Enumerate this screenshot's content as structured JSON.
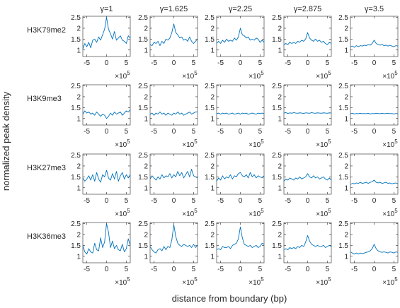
{
  "figure": {
    "ylabel": "normalized peak density",
    "xlabel": "distance from boundary (bp)",
    "x_exponent_label": "×10",
    "x_exponent_power": "5"
  },
  "chart_data": {
    "type": "line",
    "layout": "small-multiples grid, 4 rows x 5 columns",
    "columns": [
      "γ=1",
      "γ=1.625",
      "γ=2.25",
      "γ=2.875",
      "γ=3.5"
    ],
    "rows": [
      "H3K79me2",
      "H3K9me3",
      "H3K27me3",
      "H3K36me3"
    ],
    "xlim": [
      -6,
      6
    ],
    "x_multiplier": 100000,
    "xticks": [
      -5,
      0,
      5
    ],
    "ylim": [
      0.7,
      2.55
    ],
    "yticks": [
      1,
      1.5,
      2,
      2.5
    ],
    "grid": false,
    "line_color": "#0072BD",
    "x": [
      -6,
      -5.5,
      -5,
      -4.5,
      -4,
      -3.5,
      -3,
      -2.5,
      -2,
      -1.5,
      -1,
      -0.5,
      0,
      0.5,
      1,
      1.5,
      2,
      2.5,
      3,
      3.5,
      4,
      4.5,
      5,
      5.5,
      6
    ],
    "panels": [
      [
        {
          "values": [
            1.05,
            1.3,
            1.15,
            1.35,
            1.1,
            1.45,
            1.5,
            1.35,
            1.6,
            1.45,
            1.7,
            1.95,
            2.5,
            1.95,
            1.75,
            1.5,
            1.85,
            1.45,
            1.55,
            1.65,
            1.45,
            1.4,
            1.3,
            1.65,
            1.55
          ]
        },
        {
          "values": [
            1.25,
            1.2,
            1.35,
            1.3,
            1.4,
            1.2,
            1.4,
            1.3,
            1.5,
            1.45,
            1.55,
            1.8,
            2.2,
            1.8,
            1.7,
            1.55,
            1.6,
            1.45,
            1.5,
            1.4,
            1.6,
            1.4,
            1.3,
            1.4,
            1.5
          ]
        },
        {
          "values": [
            1.3,
            1.4,
            1.3,
            1.45,
            1.35,
            1.5,
            1.4,
            1.45,
            1.4,
            1.55,
            1.45,
            1.6,
            2.0,
            1.7,
            1.65,
            1.55,
            1.6,
            1.45,
            1.5,
            1.45,
            1.55,
            1.5,
            1.35,
            1.45,
            1.35
          ]
        },
        {
          "values": [
            1.25,
            1.3,
            1.25,
            1.35,
            1.3,
            1.35,
            1.3,
            1.4,
            1.35,
            1.45,
            1.4,
            1.5,
            1.8,
            1.55,
            1.45,
            1.4,
            1.5,
            1.4,
            1.45,
            1.35,
            1.4,
            1.3,
            1.25,
            1.35,
            1.3
          ]
        },
        {
          "values": [
            1.15,
            1.18,
            1.12,
            1.2,
            1.15,
            1.2,
            1.18,
            1.22,
            1.2,
            1.25,
            1.22,
            1.3,
            1.45,
            1.3,
            1.25,
            1.22,
            1.25,
            1.2,
            1.22,
            1.18,
            1.22,
            1.18,
            1.15,
            1.2,
            1.18
          ]
        }
      ],
      [
        {
          "values": [
            1.2,
            1.35,
            1.25,
            1.3,
            1.2,
            1.25,
            1.15,
            1.3,
            1.2,
            1.1,
            1.2,
            1.15,
            1.0,
            1.1,
            1.25,
            1.15,
            1.3,
            1.2,
            1.25,
            1.3,
            1.15,
            1.25,
            1.35,
            1.3,
            1.4
          ]
        },
        {
          "values": [
            1.2,
            1.25,
            1.15,
            1.25,
            1.2,
            1.3,
            1.2,
            1.25,
            1.15,
            1.25,
            1.2,
            1.15,
            1.25,
            1.2,
            1.3,
            1.2,
            1.25,
            1.15,
            1.2,
            1.25,
            1.3,
            1.2,
            1.25,
            1.3,
            1.3
          ]
        },
        {
          "values": [
            1.22,
            1.25,
            1.2,
            1.25,
            1.22,
            1.25,
            1.2,
            1.22,
            1.25,
            1.2,
            1.22,
            1.25,
            1.2,
            1.25,
            1.22,
            1.25,
            1.2,
            1.22,
            1.25,
            1.22,
            1.2,
            1.25,
            1.22,
            1.25,
            1.22
          ]
        },
        {
          "values": [
            1.25,
            1.27,
            1.23,
            1.26,
            1.24,
            1.27,
            1.25,
            1.24,
            1.26,
            1.25,
            1.23,
            1.26,
            1.25,
            1.24,
            1.27,
            1.25,
            1.24,
            1.26,
            1.25,
            1.24,
            1.26,
            1.25,
            1.24,
            1.26,
            1.25
          ]
        },
        {
          "values": [
            1.22,
            1.24,
            1.21,
            1.23,
            1.22,
            1.24,
            1.22,
            1.23,
            1.22,
            1.24,
            1.21,
            1.23,
            1.22,
            1.24,
            1.23,
            1.22,
            1.24,
            1.22,
            1.23,
            1.24,
            1.22,
            1.23,
            1.21,
            1.23,
            1.22
          ]
        }
      ],
      [
        {
          "values": [
            1.45,
            1.3,
            1.4,
            1.55,
            1.35,
            1.6,
            1.3,
            1.7,
            1.4,
            1.25,
            1.6,
            1.5,
            1.8,
            1.45,
            1.35,
            1.65,
            1.4,
            1.75,
            1.3,
            1.55,
            1.7,
            1.4,
            1.6,
            1.45,
            1.6
          ]
        },
        {
          "values": [
            1.4,
            1.55,
            1.45,
            1.35,
            1.5,
            1.4,
            1.6,
            1.45,
            1.55,
            1.5,
            1.65,
            1.45,
            1.6,
            1.5,
            1.75,
            1.55,
            1.7,
            1.45,
            1.6,
            1.75,
            1.5,
            1.85,
            1.55,
            1.5,
            1.45
          ]
        },
        {
          "values": [
            1.3,
            1.45,
            1.35,
            1.55,
            1.4,
            1.5,
            1.45,
            1.6,
            1.4,
            1.55,
            1.5,
            1.65,
            1.7,
            1.55,
            1.5,
            1.6,
            1.45,
            1.7,
            1.5,
            1.6,
            1.45,
            1.55,
            1.5,
            1.45,
            1.55
          ]
        },
        {
          "values": [
            1.3,
            1.4,
            1.35,
            1.45,
            1.4,
            1.35,
            1.45,
            1.4,
            1.5,
            1.4,
            1.45,
            1.5,
            1.65,
            1.5,
            1.45,
            1.55,
            1.45,
            1.5,
            1.4,
            1.45,
            1.5,
            1.4,
            1.35,
            1.45,
            1.35
          ]
        },
        {
          "values": [
            1.15,
            1.2,
            1.18,
            1.22,
            1.2,
            1.25,
            1.2,
            1.22,
            1.25,
            1.2,
            1.25,
            1.28,
            1.35,
            1.25,
            1.22,
            1.25,
            1.2,
            1.22,
            1.25,
            1.2,
            1.22,
            1.18,
            1.2,
            1.22,
            1.18
          ]
        }
      ],
      [
        {
          "values": [
            1.5,
            1.2,
            1.1,
            1.35,
            1.2,
            1.15,
            1.6,
            1.3,
            1.25,
            1.85,
            1.4,
            1.65,
            2.5,
            2.1,
            1.4,
            1.7,
            1.35,
            1.5,
            1.3,
            1.25,
            1.55,
            1.2,
            1.35,
            1.8,
            1.5
          ]
        },
        {
          "values": [
            1.45,
            1.3,
            1.2,
            1.15,
            1.3,
            1.35,
            1.25,
            1.45,
            1.3,
            1.45,
            1.4,
            1.75,
            2.45,
            1.9,
            1.6,
            1.5,
            1.45,
            1.55,
            1.5,
            1.45,
            1.5,
            1.4,
            1.55,
            1.4,
            1.5
          ]
        },
        {
          "values": [
            1.3,
            1.35,
            1.3,
            1.45,
            1.4,
            1.4,
            1.45,
            1.35,
            1.5,
            1.55,
            1.6,
            1.8,
            2.35,
            1.85,
            1.55,
            1.5,
            1.45,
            1.5,
            1.4,
            1.45,
            1.5,
            1.4,
            1.45,
            1.6,
            1.55
          ]
        },
        {
          "values": [
            1.3,
            1.35,
            1.3,
            1.4,
            1.35,
            1.4,
            1.35,
            1.45,
            1.4,
            1.5,
            1.45,
            1.65,
            1.95,
            1.7,
            1.55,
            1.5,
            1.45,
            1.5,
            1.45,
            1.45,
            1.5,
            1.4,
            1.45,
            1.5,
            1.45
          ]
        },
        {
          "values": [
            1.2,
            1.15,
            1.1,
            1.15,
            1.1,
            1.15,
            1.12,
            1.15,
            1.18,
            1.2,
            1.25,
            1.35,
            1.55,
            1.35,
            1.25,
            1.2,
            1.18,
            1.2,
            1.18,
            1.15,
            1.2,
            1.18,
            1.15,
            1.2,
            1.18
          ]
        }
      ]
    ]
  }
}
